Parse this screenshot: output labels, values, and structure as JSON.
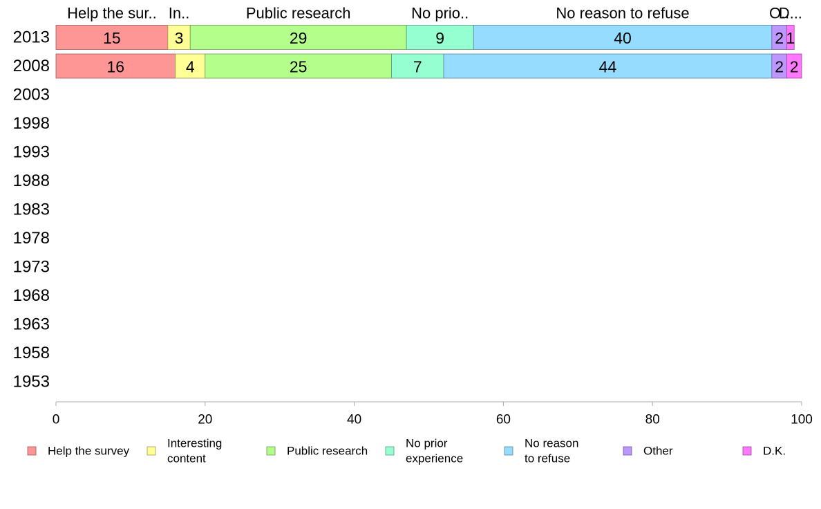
{
  "chart_data": {
    "type": "bar",
    "orientation": "horizontal",
    "stacked": true,
    "categories": [
      "2013",
      "2008",
      "2003",
      "1998",
      "1993",
      "1988",
      "1983",
      "1978",
      "1973",
      "1968",
      "1963",
      "1958",
      "1953"
    ],
    "series": [
      {
        "name": "Help the survey",
        "column_label": "Help the sur..",
        "legend_lines": [
          "Help the survey"
        ],
        "color": "#FF9696",
        "values": [
          15,
          16,
          null,
          null,
          null,
          null,
          null,
          null,
          null,
          null,
          null,
          null,
          null
        ]
      },
      {
        "name": "Interesting content",
        "column_label": "In..",
        "legend_lines": [
          "Interesting",
          "content"
        ],
        "color": "#FFFF96",
        "values": [
          3,
          4,
          null,
          null,
          null,
          null,
          null,
          null,
          null,
          null,
          null,
          null,
          null
        ]
      },
      {
        "name": "Public research",
        "column_label": "Public research",
        "legend_lines": [
          "Public research"
        ],
        "color": "#B4FF8C",
        "values": [
          29,
          25,
          null,
          null,
          null,
          null,
          null,
          null,
          null,
          null,
          null,
          null,
          null
        ]
      },
      {
        "name": "No prior experience",
        "column_label": "No prio..",
        "legend_lines": [
          "No prior",
          "experience"
        ],
        "color": "#96FFD2",
        "values": [
          9,
          7,
          null,
          null,
          null,
          null,
          null,
          null,
          null,
          null,
          null,
          null,
          null
        ]
      },
      {
        "name": "No reason to refuse",
        "column_label": "No reason to refuse",
        "legend_lines": [
          "No reason",
          "to refuse"
        ],
        "color": "#96DCFF",
        "values": [
          40,
          44,
          null,
          null,
          null,
          null,
          null,
          null,
          null,
          null,
          null,
          null,
          null
        ]
      },
      {
        "name": "Other",
        "column_label": "O..",
        "legend_lines": [
          "Other"
        ],
        "color": "#BE96FF",
        "values": [
          2,
          2,
          null,
          null,
          null,
          null,
          null,
          null,
          null,
          null,
          null,
          null,
          null
        ]
      },
      {
        "name": "D.K.",
        "column_label": "D...",
        "legend_lines": [
          "D.K."
        ],
        "color": "#FF78FF",
        "values": [
          1,
          2,
          null,
          null,
          null,
          null,
          null,
          null,
          null,
          null,
          null,
          null,
          null
        ]
      }
    ],
    "xlim": [
      0,
      100
    ],
    "xticks": [
      0,
      20,
      40,
      60,
      80,
      100
    ],
    "grid": false,
    "legend_position": "bottom"
  }
}
